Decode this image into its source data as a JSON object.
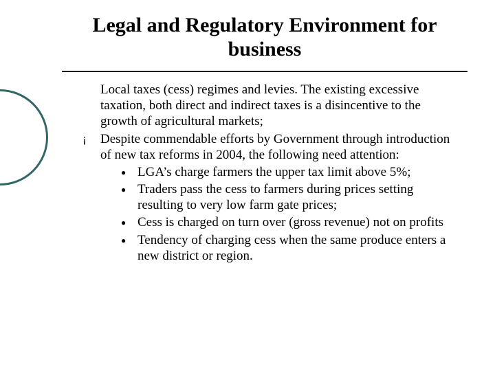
{
  "title": "Legal and Regulatory Environment for business",
  "colors": {
    "circle_border": "#336666",
    "text": "#000000",
    "rule": "#000000",
    "background": "#ffffff"
  },
  "typography": {
    "title_fontsize": 30,
    "body_fontsize": 19,
    "font_family": "Times New Roman"
  },
  "items": [
    {
      "bullet_visible": false,
      "text": "Local taxes (cess) regimes and levies. The existing excessive taxation, both direct and indirect taxes is a disincentive to the growth of agricultural markets;",
      "subitems": []
    },
    {
      "bullet_visible": true,
      "text": "Despite commendable efforts by Government through introduction of new tax reforms in 2004, the following need attention:",
      "subitems": [
        "LGA’s charge farmers the upper tax limit above 5%;",
        "Traders pass the cess to farmers during prices setting resulting to very low farm gate prices;",
        " Cess is charged on turn over (gross revenue) not on profits",
        "Tendency of charging cess when the same produce enters a new district or region."
      ]
    }
  ],
  "bullets": {
    "main": "¡",
    "sub": "●"
  }
}
